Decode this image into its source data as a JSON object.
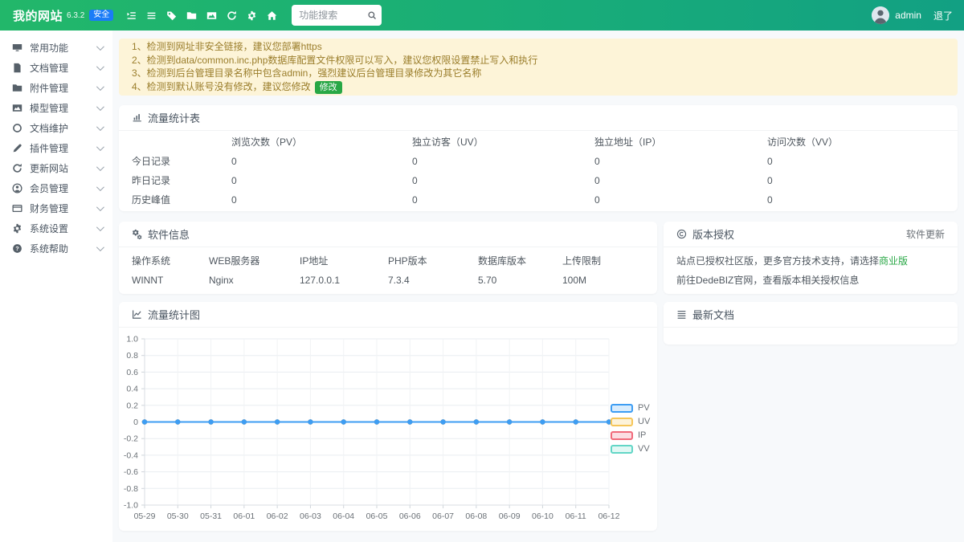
{
  "header": {
    "logo": "我的网站",
    "version": "6.3.2",
    "badge": "安全",
    "nav_icons": [
      "outdent-icon",
      "menu-icon",
      "tag-icon",
      "folder-icon",
      "chart-image-icon",
      "refresh-icon",
      "gear-icon",
      "home-icon"
    ],
    "search_placeholder": "功能搜索",
    "user": "admin",
    "logout": "退了"
  },
  "sidebar": {
    "items": [
      {
        "key": "common-functions",
        "icon": "desktop-icon",
        "label": "常用功能"
      },
      {
        "key": "document-manage",
        "icon": "document-icon",
        "label": "文档管理"
      },
      {
        "key": "attachment-manage",
        "icon": "folder-icon",
        "label": "附件管理"
      },
      {
        "key": "model-manage",
        "icon": "chart-image-icon",
        "label": "模型管理"
      },
      {
        "key": "document-maintain",
        "icon": "circle-icon",
        "label": "文档维护"
      },
      {
        "key": "plugin-manage",
        "icon": "pen-icon",
        "label": "插件管理"
      },
      {
        "key": "update-site",
        "icon": "refresh-icon",
        "label": "更新网站"
      },
      {
        "key": "member-manage",
        "icon": "user-icon",
        "label": "会员管理"
      },
      {
        "key": "finance-manage",
        "icon": "card-icon",
        "label": "财务管理"
      },
      {
        "key": "system-settings",
        "icon": "gear-icon",
        "label": "系统设置"
      },
      {
        "key": "system-help",
        "icon": "help-icon",
        "label": "系统帮助"
      }
    ]
  },
  "notices": [
    {
      "text": "1、检测到网址非安全链接，建议您部署https"
    },
    {
      "text": "2、检测到data/common.inc.php数据库配置文件权限可以写入，建议您权限设置禁止写入和执行"
    },
    {
      "text": "3、检测到后台管理目录名称中包含admin，强烈建议后台管理目录修改为其它名称"
    },
    {
      "text": "4、检测到默认账号没有修改，建议您修改",
      "action": "修改"
    }
  ],
  "traffic_table": {
    "title": "流量统计表",
    "columns": [
      "浏览次数（PV）",
      "独立访客（UV）",
      "独立地址（IP）",
      "访问次数（VV）"
    ],
    "rows": [
      {
        "label": "今日记录",
        "values": [
          "0",
          "0",
          "0",
          "0"
        ]
      },
      {
        "label": "昨日记录",
        "values": [
          "0",
          "0",
          "0",
          "0"
        ]
      },
      {
        "label": "历史峰值",
        "values": [
          "0",
          "0",
          "0",
          "0"
        ]
      }
    ]
  },
  "software_info": {
    "title": "软件信息",
    "fields": [
      {
        "label": "操作系统",
        "value": "WINNT"
      },
      {
        "label": "WEB服务器",
        "value": "Nginx"
      },
      {
        "label": "IP地址",
        "value": "127.0.0.1"
      },
      {
        "label": "PHP版本",
        "value": "7.3.4"
      },
      {
        "label": "数据库版本",
        "value": "5.70"
      },
      {
        "label": "上传限制",
        "value": "100M"
      }
    ]
  },
  "license": {
    "title": "版本授权",
    "update_link": "软件更新",
    "line1_prefix": "站点已授权社区版，更多官方技术支持，请选择",
    "line1_link": "商业版",
    "line2": "前往DedeBIZ官网，查看版本相关授权信息"
  },
  "chart_panel": {
    "title": "流量统计图"
  },
  "latest_docs": {
    "title": "最新文档"
  },
  "chart_data": {
    "type": "line",
    "title": "流量统计图",
    "x": [
      "05-29",
      "05-30",
      "05-31",
      "06-01",
      "06-02",
      "06-03",
      "06-04",
      "06-05",
      "06-06",
      "06-07",
      "06-08",
      "06-09",
      "06-10",
      "06-11",
      "06-12"
    ],
    "series": [
      {
        "name": "PV",
        "values": [
          0,
          0,
          0,
          0,
          0,
          0,
          0,
          0,
          0,
          0,
          0,
          0,
          0,
          0,
          0
        ],
        "color": "#3d9df3",
        "fill": "#d8ecfd"
      },
      {
        "name": "UV",
        "values": [
          0,
          0,
          0,
          0,
          0,
          0,
          0,
          0,
          0,
          0,
          0,
          0,
          0,
          0,
          0
        ],
        "color": "#f6c659",
        "fill": "#fdf3da"
      },
      {
        "name": "IP",
        "values": [
          0,
          0,
          0,
          0,
          0,
          0,
          0,
          0,
          0,
          0,
          0,
          0,
          0,
          0,
          0
        ],
        "color": "#f0697a",
        "fill": "#fbdde3"
      },
      {
        "name": "VV",
        "values": [
          0,
          0,
          0,
          0,
          0,
          0,
          0,
          0,
          0,
          0,
          0,
          0,
          0,
          0,
          0
        ],
        "color": "#62d6c6",
        "fill": "#e1f8f4"
      }
    ],
    "ylim": [
      -1,
      1
    ],
    "yticks": [
      "1.0",
      "0.8",
      "0.6",
      "0.4",
      "0.2",
      "0",
      "-0.2",
      "-0.4",
      "-0.6",
      "-0.8",
      "-1.0"
    ],
    "xlabel": "",
    "ylabel": "",
    "grid": true,
    "legend_position": "right"
  },
  "colors": {
    "header_gradient_start": "#22b76a",
    "header_gradient_end": "#12a083",
    "safe_badge_blue": "#1b7cf7",
    "accent_green": "#28a745",
    "warning_bg": "#fdf4d8",
    "warning_text": "#9a7d2a",
    "panel_bg": "#ffffff",
    "page_bg": "#f7f9fb"
  }
}
